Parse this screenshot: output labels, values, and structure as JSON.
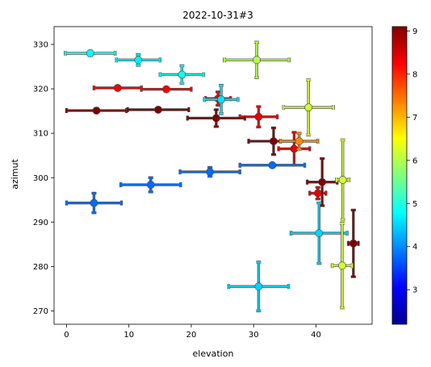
{
  "chart_data": {
    "type": "scatter",
    "title": "2022-10-31#3",
    "xlabel": "elevation",
    "ylabel": "azimut",
    "xlim": [
      -2,
      49
    ],
    "ylim": [
      267,
      334
    ],
    "xticks": [
      0,
      10,
      20,
      30,
      40
    ],
    "yticks": [
      270,
      280,
      290,
      300,
      310,
      320,
      330
    ],
    "colorbar": {
      "colormap": "jet",
      "range": [
        2.2,
        9.1
      ],
      "ticks": [
        3,
        4,
        5,
        6,
        7,
        8,
        9
      ]
    },
    "points": [
      {
        "x": 3.8,
        "y": 328.0,
        "xerr": 4.0,
        "yerr": 0.5,
        "c": 4.8
      },
      {
        "x": 11.5,
        "y": 326.5,
        "xerr": 3.5,
        "yerr": 1.2,
        "c": 4.7
      },
      {
        "x": 18.5,
        "y": 323.2,
        "xerr": 3.5,
        "yerr": 2.0,
        "c": 4.9
      },
      {
        "x": 30.5,
        "y": 326.5,
        "xerr": 5.2,
        "yerr": 4.0,
        "c": 6.0
      },
      {
        "x": 8.2,
        "y": 320.2,
        "xerr": 3.8,
        "yerr": 0.3,
        "c": 8.3
      },
      {
        "x": 16.0,
        "y": 319.9,
        "xerr": 4.0,
        "yerr": 0.3,
        "c": 8.3
      },
      {
        "x": 24.3,
        "y": 317.8,
        "xerr": 2.0,
        "yerr": 1.5,
        "c": 8.4
      },
      {
        "x": 24.8,
        "y": 317.6,
        "xerr": 2.7,
        "yerr": 3.2,
        "c": 4.6
      },
      {
        "x": 30.8,
        "y": 313.7,
        "xerr": 3.0,
        "yerr": 2.3,
        "c": 8.4
      },
      {
        "x": 38.8,
        "y": 315.8,
        "xerr": 4.0,
        "yerr": 6.2,
        "c": 6.2
      },
      {
        "x": 4.8,
        "y": 315.1,
        "xerr": 4.8,
        "yerr": 0.4,
        "c": 9.1
      },
      {
        "x": 14.7,
        "y": 315.3,
        "xerr": 4.9,
        "yerr": 0.4,
        "c": 9.1
      },
      {
        "x": 24.0,
        "y": 313.4,
        "xerr": 4.6,
        "yerr": 1.9,
        "c": 9.1
      },
      {
        "x": 33.2,
        "y": 308.2,
        "xerr": 4.0,
        "yerr": 3.0,
        "c": 9.1
      },
      {
        "x": 36.5,
        "y": 306.5,
        "xerr": 2.5,
        "yerr": 3.7,
        "c": 8.4
      },
      {
        "x": 37.3,
        "y": 308.2,
        "xerr": 3.0,
        "yerr": 1.8,
        "c": 7.3
      },
      {
        "x": 40.3,
        "y": 296.5,
        "xerr": 1.3,
        "yerr": 1.3,
        "c": 8.4
      },
      {
        "x": 41.0,
        "y": 299.0,
        "xerr": 2.4,
        "yerr": 5.3,
        "c": 9.1
      },
      {
        "x": 44.3,
        "y": 299.5,
        "xerr": 1.0,
        "yerr": 9.0,
        "c": 6.2
      },
      {
        "x": 33.0,
        "y": 302.8,
        "xerr": 5.2,
        "yerr": 0.3,
        "c": 3.8
      },
      {
        "x": 23.0,
        "y": 301.3,
        "xerr": 4.8,
        "yerr": 1.0,
        "c": 3.8
      },
      {
        "x": 13.5,
        "y": 298.4,
        "xerr": 4.8,
        "yerr": 1.6,
        "c": 3.8
      },
      {
        "x": 4.4,
        "y": 294.3,
        "xerr": 4.4,
        "yerr": 2.2,
        "c": 3.8
      },
      {
        "x": 40.5,
        "y": 287.5,
        "xerr": 4.5,
        "yerr": 6.8,
        "c": 4.5
      },
      {
        "x": 46.0,
        "y": 285.2,
        "xerr": 0.8,
        "yerr": 7.5,
        "c": 9.1
      },
      {
        "x": 44.2,
        "y": 280.2,
        "xerr": 1.6,
        "yerr": 9.5,
        "c": 6.2
      },
      {
        "x": 30.8,
        "y": 275.5,
        "xerr": 4.8,
        "yerr": 5.5,
        "c": 4.5
      }
    ]
  }
}
